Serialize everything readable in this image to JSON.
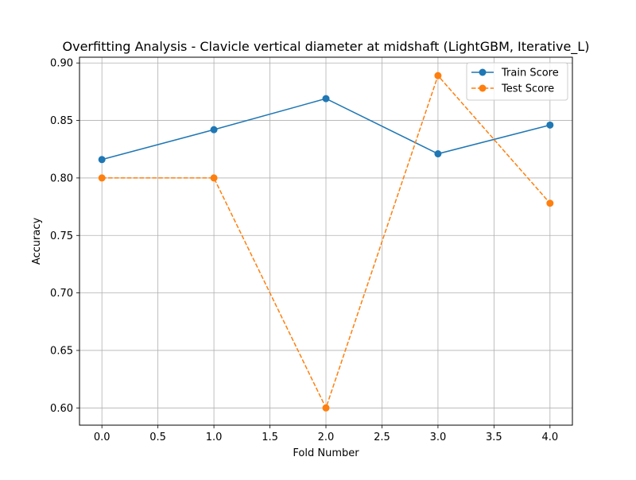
{
  "chart_data": {
    "type": "line",
    "title": "Overfitting Analysis - Clavicle vertical diameter at midshaft (LightGBM, Iterative_L)",
    "xlabel": "Fold Number",
    "ylabel": "Accuracy",
    "xlim": [
      -0.2,
      4.2
    ],
    "ylim": [
      0.585,
      0.905
    ],
    "xticks": [
      0.0,
      0.5,
      1.0,
      1.5,
      2.0,
      2.5,
      3.0,
      3.5,
      4.0
    ],
    "xtick_labels": [
      "0.0",
      "0.5",
      "1.0",
      "1.5",
      "2.0",
      "2.5",
      "3.0",
      "3.5",
      "4.0"
    ],
    "yticks": [
      0.6,
      0.65,
      0.7,
      0.75,
      0.8,
      0.85,
      0.9
    ],
    "ytick_labels": [
      "0.60",
      "0.65",
      "0.70",
      "0.75",
      "0.80",
      "0.85",
      "0.90"
    ],
    "grid": true,
    "legend_position": "top-right",
    "x": [
      0,
      1,
      2,
      3,
      4
    ],
    "series": [
      {
        "name": "Train Score",
        "values": [
          0.816,
          0.842,
          0.869,
          0.821,
          0.846
        ],
        "color": "#1f77b4",
        "linestyle": "solid",
        "marker": "circle"
      },
      {
        "name": "Test Score",
        "values": [
          0.8,
          0.8,
          0.6,
          0.889,
          0.778
        ],
        "color": "#ff7f0e",
        "linestyle": "dashed",
        "marker": "circle"
      }
    ]
  }
}
